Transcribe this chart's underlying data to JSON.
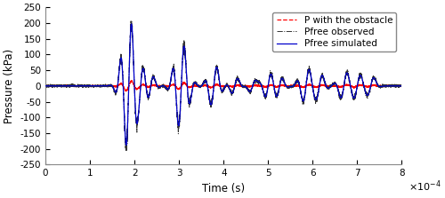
{
  "xlim": [
    0,
    0.0008
  ],
  "ylim": [
    -250,
    250
  ],
  "xlabel": "Time (s)",
  "ylabel": "Pressure (kPa)",
  "xticks": [
    0,
    0.0001,
    0.0002,
    0.0003,
    0.0004,
    0.0005,
    0.0006,
    0.0007,
    0.0008
  ],
  "xtick_labels": [
    "0",
    "1",
    "2",
    "3",
    "4",
    "5",
    "6",
    "7",
    "8"
  ],
  "yticks": [
    -250,
    -200,
    -150,
    -100,
    -50,
    0,
    50,
    100,
    150,
    200,
    250
  ],
  "color_sim": "#0000cc",
  "color_obs": "#333333",
  "color_obstacle": "#ff0000",
  "lw_sim": 0.9,
  "lw_obs": 0.7,
  "lw_obstacle": 0.9,
  "legend_labels": [
    "Pfree simulated",
    "Pfree observed",
    "P with the obstacle"
  ],
  "linestyle_obs": "-.",
  "linestyle_obstacle": "--",
  "figsize": [
    5.0,
    2.23
  ],
  "dpi": 100,
  "background": "#ffffff",
  "spine_color": "#888888"
}
